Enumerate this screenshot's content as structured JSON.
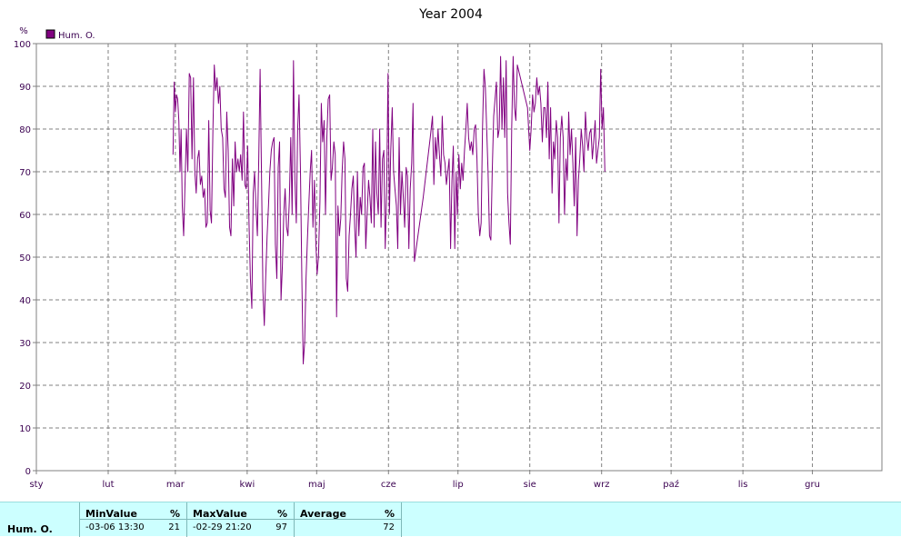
{
  "chart_data": {
    "type": "line",
    "title": "Year 2004",
    "ylabel": "%",
    "ylim": [
      0,
      100
    ],
    "yticks": [
      0,
      10,
      20,
      30,
      40,
      50,
      60,
      70,
      80,
      90,
      100
    ],
    "xlim": [
      1,
      366
    ],
    "months": [
      {
        "label": "sty",
        "day": 1
      },
      {
        "label": "lut",
        "day": 32
      },
      {
        "label": "mar",
        "day": 61
      },
      {
        "label": "kwi",
        "day": 92
      },
      {
        "label": "maj",
        "day": 122
      },
      {
        "label": "cze",
        "day": 153
      },
      {
        "label": "lip",
        "day": 183
      },
      {
        "label": "sie",
        "day": 214
      },
      {
        "label": "wrz",
        "day": 245
      },
      {
        "label": "paź",
        "day": 275
      },
      {
        "label": "lis",
        "day": 306
      },
      {
        "label": "gru",
        "day": 336
      }
    ],
    "grid": true,
    "legend_position": "top-left",
    "series": [
      {
        "name": "Hum. O.",
        "color": "#800080",
        "points": [
          [
            60.0,
            74
          ],
          [
            60.5,
            91
          ],
          [
            61.0,
            84
          ],
          [
            61.5,
            88
          ],
          [
            62.0,
            87
          ],
          [
            62.5,
            82
          ],
          [
            63.0,
            70
          ],
          [
            63.5,
            80
          ],
          [
            64.0,
            62
          ],
          [
            64.6,
            55
          ],
          [
            65.2,
            68
          ],
          [
            65.8,
            80
          ],
          [
            66.4,
            70
          ],
          [
            67.0,
            93
          ],
          [
            67.6,
            92
          ],
          [
            68.2,
            73
          ],
          [
            68.8,
            92
          ],
          [
            69.4,
            70
          ],
          [
            70.0,
            65
          ],
          [
            70.6,
            73
          ],
          [
            71.2,
            75
          ],
          [
            71.8,
            67
          ],
          [
            72.4,
            69
          ],
          [
            73.0,
            64
          ],
          [
            73.6,
            66
          ],
          [
            74.2,
            57
          ],
          [
            74.8,
            58
          ],
          [
            75.4,
            82
          ],
          [
            76.0,
            61
          ],
          [
            76.6,
            58
          ],
          [
            77.2,
            80
          ],
          [
            77.8,
            95
          ],
          [
            78.4,
            89
          ],
          [
            79.0,
            92
          ],
          [
            79.6,
            86
          ],
          [
            80.2,
            90
          ],
          [
            80.8,
            80
          ],
          [
            81.4,
            78
          ],
          [
            82.0,
            66
          ],
          [
            82.6,
            64
          ],
          [
            83.2,
            84
          ],
          [
            83.8,
            75
          ],
          [
            84.4,
            57
          ],
          [
            85.0,
            55
          ],
          [
            85.6,
            73
          ],
          [
            86.2,
            62
          ],
          [
            86.8,
            77
          ],
          [
            87.4,
            70
          ],
          [
            88.0,
            73
          ],
          [
            88.6,
            70
          ],
          [
            89.2,
            74
          ],
          [
            89.8,
            68
          ],
          [
            90.4,
            84
          ],
          [
            91.0,
            67
          ],
          [
            91.6,
            66
          ],
          [
            92.2,
            76
          ],
          [
            92.8,
            58
          ],
          [
            93.4,
            45
          ],
          [
            94.0,
            38
          ],
          [
            94.6,
            65
          ],
          [
            95.2,
            70
          ],
          [
            95.8,
            62
          ],
          [
            96.4,
            55
          ],
          [
            97.0,
            73
          ],
          [
            97.6,
            94
          ],
          [
            98.2,
            68
          ],
          [
            98.8,
            42
          ],
          [
            99.4,
            34
          ],
          [
            100.0,
            45
          ],
          [
            100.6,
            55
          ],
          [
            101.2,
            62
          ],
          [
            101.8,
            70
          ],
          [
            102.4,
            75
          ],
          [
            103.0,
            77
          ],
          [
            103.6,
            78
          ],
          [
            104.2,
            53
          ],
          [
            104.8,
            45
          ],
          [
            105.4,
            71
          ],
          [
            106.0,
            77
          ],
          [
            106.6,
            40
          ],
          [
            107.2,
            48
          ],
          [
            107.8,
            60
          ],
          [
            108.4,
            66
          ],
          [
            109.0,
            57
          ],
          [
            109.6,
            55
          ],
          [
            110.2,
            63
          ],
          [
            110.8,
            78
          ],
          [
            111.4,
            60
          ],
          [
            112.0,
            96
          ],
          [
            112.6,
            68
          ],
          [
            113.2,
            58
          ],
          [
            113.8,
            80
          ],
          [
            114.4,
            88
          ],
          [
            115.0,
            70
          ],
          [
            115.6,
            45
          ],
          [
            116.2,
            25
          ],
          [
            116.8,
            30
          ],
          [
            117.4,
            45
          ],
          [
            118.0,
            54
          ],
          [
            118.6,
            62
          ],
          [
            119.2,
            70
          ],
          [
            119.8,
            75
          ],
          [
            120.4,
            57
          ],
          [
            121.0,
            68
          ],
          [
            121.6,
            54
          ],
          [
            122.2,
            46
          ],
          [
            122.8,
            50
          ],
          [
            123.4,
            63
          ],
          [
            124.0,
            86
          ],
          [
            124.6,
            77
          ],
          [
            125.2,
            82
          ],
          [
            125.8,
            60
          ],
          [
            126.4,
            78
          ],
          [
            127.0,
            87
          ],
          [
            127.6,
            88
          ],
          [
            128.2,
            68
          ],
          [
            128.8,
            71
          ],
          [
            129.4,
            77
          ],
          [
            130.0,
            74
          ],
          [
            130.6,
            36
          ],
          [
            131.2,
            62
          ],
          [
            131.8,
            55
          ],
          [
            132.4,
            59
          ],
          [
            133.0,
            70
          ],
          [
            133.6,
            77
          ],
          [
            134.2,
            73
          ],
          [
            134.8,
            45
          ],
          [
            135.4,
            42
          ],
          [
            136.0,
            55
          ],
          [
            136.6,
            60
          ],
          [
            137.2,
            66
          ],
          [
            137.8,
            69
          ],
          [
            138.4,
            57
          ],
          [
            139.0,
            50
          ],
          [
            139.6,
            70
          ],
          [
            140.2,
            55
          ],
          [
            140.8,
            64
          ],
          [
            141.4,
            60
          ],
          [
            142.0,
            71
          ],
          [
            142.6,
            72
          ],
          [
            143.2,
            52
          ],
          [
            143.8,
            60
          ],
          [
            144.4,
            68
          ],
          [
            145.0,
            64
          ],
          [
            145.6,
            58
          ],
          [
            146.2,
            80
          ],
          [
            146.8,
            57
          ],
          [
            147.4,
            77
          ],
          [
            148.0,
            65
          ],
          [
            148.6,
            60
          ],
          [
            149.2,
            80
          ],
          [
            149.8,
            57
          ],
          [
            150.4,
            73
          ],
          [
            151.0,
            75
          ],
          [
            151.6,
            52
          ],
          [
            152.2,
            65
          ],
          [
            152.8,
            93
          ],
          [
            153.4,
            60
          ],
          [
            154.0,
            75
          ],
          [
            154.6,
            85
          ],
          [
            155.2,
            70
          ],
          [
            155.8,
            66
          ],
          [
            156.4,
            62
          ],
          [
            157.0,
            52
          ],
          [
            157.6,
            78
          ],
          [
            158.2,
            60
          ],
          [
            158.8,
            70
          ],
          [
            159.4,
            64
          ],
          [
            160.0,
            57
          ],
          [
            160.6,
            71
          ],
          [
            161.2,
            69
          ],
          [
            161.8,
            52
          ],
          [
            162.4,
            66
          ],
          [
            163.0,
            72
          ],
          [
            163.6,
            86
          ],
          [
            164.2,
            49
          ],
          [
            168.0,
            64
          ],
          [
            171.0,
            78
          ],
          [
            172.0,
            83
          ],
          [
            172.6,
            67
          ],
          [
            173.2,
            78
          ],
          [
            173.8,
            73
          ],
          [
            174.4,
            80
          ],
          [
            175.0,
            74
          ],
          [
            175.6,
            69
          ],
          [
            176.2,
            83
          ],
          [
            176.8,
            74
          ],
          [
            177.4,
            72
          ],
          [
            178.0,
            67
          ],
          [
            178.6,
            70
          ],
          [
            179.2,
            73
          ],
          [
            179.8,
            52
          ],
          [
            180.4,
            68
          ],
          [
            181.0,
            76
          ],
          [
            181.6,
            52
          ],
          [
            182.2,
            70
          ],
          [
            182.8,
            60
          ],
          [
            183.4,
            74
          ],
          [
            184.0,
            66
          ],
          [
            184.6,
            72
          ],
          [
            185.2,
            68
          ],
          [
            185.8,
            75
          ],
          [
            186.4,
            80
          ],
          [
            187.0,
            86
          ],
          [
            187.6,
            78
          ],
          [
            188.2,
            75
          ],
          [
            188.8,
            77
          ],
          [
            189.4,
            74
          ],
          [
            190.0,
            80
          ],
          [
            190.6,
            81
          ],
          [
            191.2,
            73
          ],
          [
            191.8,
            60
          ],
          [
            192.4,
            55
          ],
          [
            193.0,
            58
          ],
          [
            193.6,
            80
          ],
          [
            194.2,
            94
          ],
          [
            194.8,
            90
          ],
          [
            195.4,
            80
          ],
          [
            196.0,
            70
          ],
          [
            196.6,
            55
          ],
          [
            197.2,
            54
          ],
          [
            197.8,
            70
          ],
          [
            198.4,
            83
          ],
          [
            199.0,
            87
          ],
          [
            199.6,
            91
          ],
          [
            200.2,
            78
          ],
          [
            200.8,
            80
          ],
          [
            201.4,
            97
          ],
          [
            202.0,
            80
          ],
          [
            202.6,
            92
          ],
          [
            203.2,
            78
          ],
          [
            203.8,
            96
          ],
          [
            204.4,
            65
          ],
          [
            205.0,
            58
          ],
          [
            205.6,
            53
          ],
          [
            206.2,
            80
          ],
          [
            206.8,
            97
          ],
          [
            207.4,
            85
          ],
          [
            208.0,
            82
          ],
          [
            208.6,
            95
          ],
          [
            213.0,
            85
          ],
          [
            214.0,
            75
          ],
          [
            214.6,
            80
          ],
          [
            215.2,
            88
          ],
          [
            215.8,
            84
          ],
          [
            216.4,
            86
          ],
          [
            217.0,
            92
          ],
          [
            217.6,
            88
          ],
          [
            218.2,
            90
          ],
          [
            218.8,
            86
          ],
          [
            219.4,
            77
          ],
          [
            220.0,
            85
          ],
          [
            220.6,
            85
          ],
          [
            221.2,
            78
          ],
          [
            221.8,
            91
          ],
          [
            222.4,
            73
          ],
          [
            223.0,
            85
          ],
          [
            223.6,
            65
          ],
          [
            224.2,
            77
          ],
          [
            224.8,
            73
          ],
          [
            225.4,
            82
          ],
          [
            226.0,
            78
          ],
          [
            226.6,
            58
          ],
          [
            227.2,
            78
          ],
          [
            227.8,
            83
          ],
          [
            228.4,
            78
          ],
          [
            229.0,
            60
          ],
          [
            229.6,
            73
          ],
          [
            230.2,
            68
          ],
          [
            230.8,
            84
          ],
          [
            231.4,
            74
          ],
          [
            232.0,
            80
          ],
          [
            232.6,
            72
          ],
          [
            233.2,
            62
          ],
          [
            233.8,
            78
          ],
          [
            234.4,
            55
          ],
          [
            235.0,
            68
          ],
          [
            235.6,
            73
          ],
          [
            236.2,
            80
          ],
          [
            236.8,
            76
          ],
          [
            237.4,
            70
          ],
          [
            238.0,
            84
          ],
          [
            238.6,
            78
          ],
          [
            239.2,
            75
          ],
          [
            239.8,
            79
          ],
          [
            240.4,
            80
          ],
          [
            241.0,
            73
          ],
          [
            241.6,
            77
          ],
          [
            242.2,
            82
          ],
          [
            242.8,
            72
          ],
          [
            243.4,
            75
          ],
          [
            244.0,
            78
          ],
          [
            244.6,
            94
          ],
          [
            245.2,
            80
          ],
          [
            245.8,
            85
          ],
          [
            246.4,
            70
          ]
        ]
      }
    ]
  },
  "stats": {
    "series_name": "Hum. O.",
    "min": {
      "header": "MinValue",
      "unit": "%",
      "time": "-03-06  13:30",
      "value": "21"
    },
    "max": {
      "header": "MaxValue",
      "unit": "%",
      "time": "-02-29  21:20",
      "value": "97"
    },
    "avg": {
      "header": "Average",
      "unit": "%",
      "value": "72"
    }
  }
}
